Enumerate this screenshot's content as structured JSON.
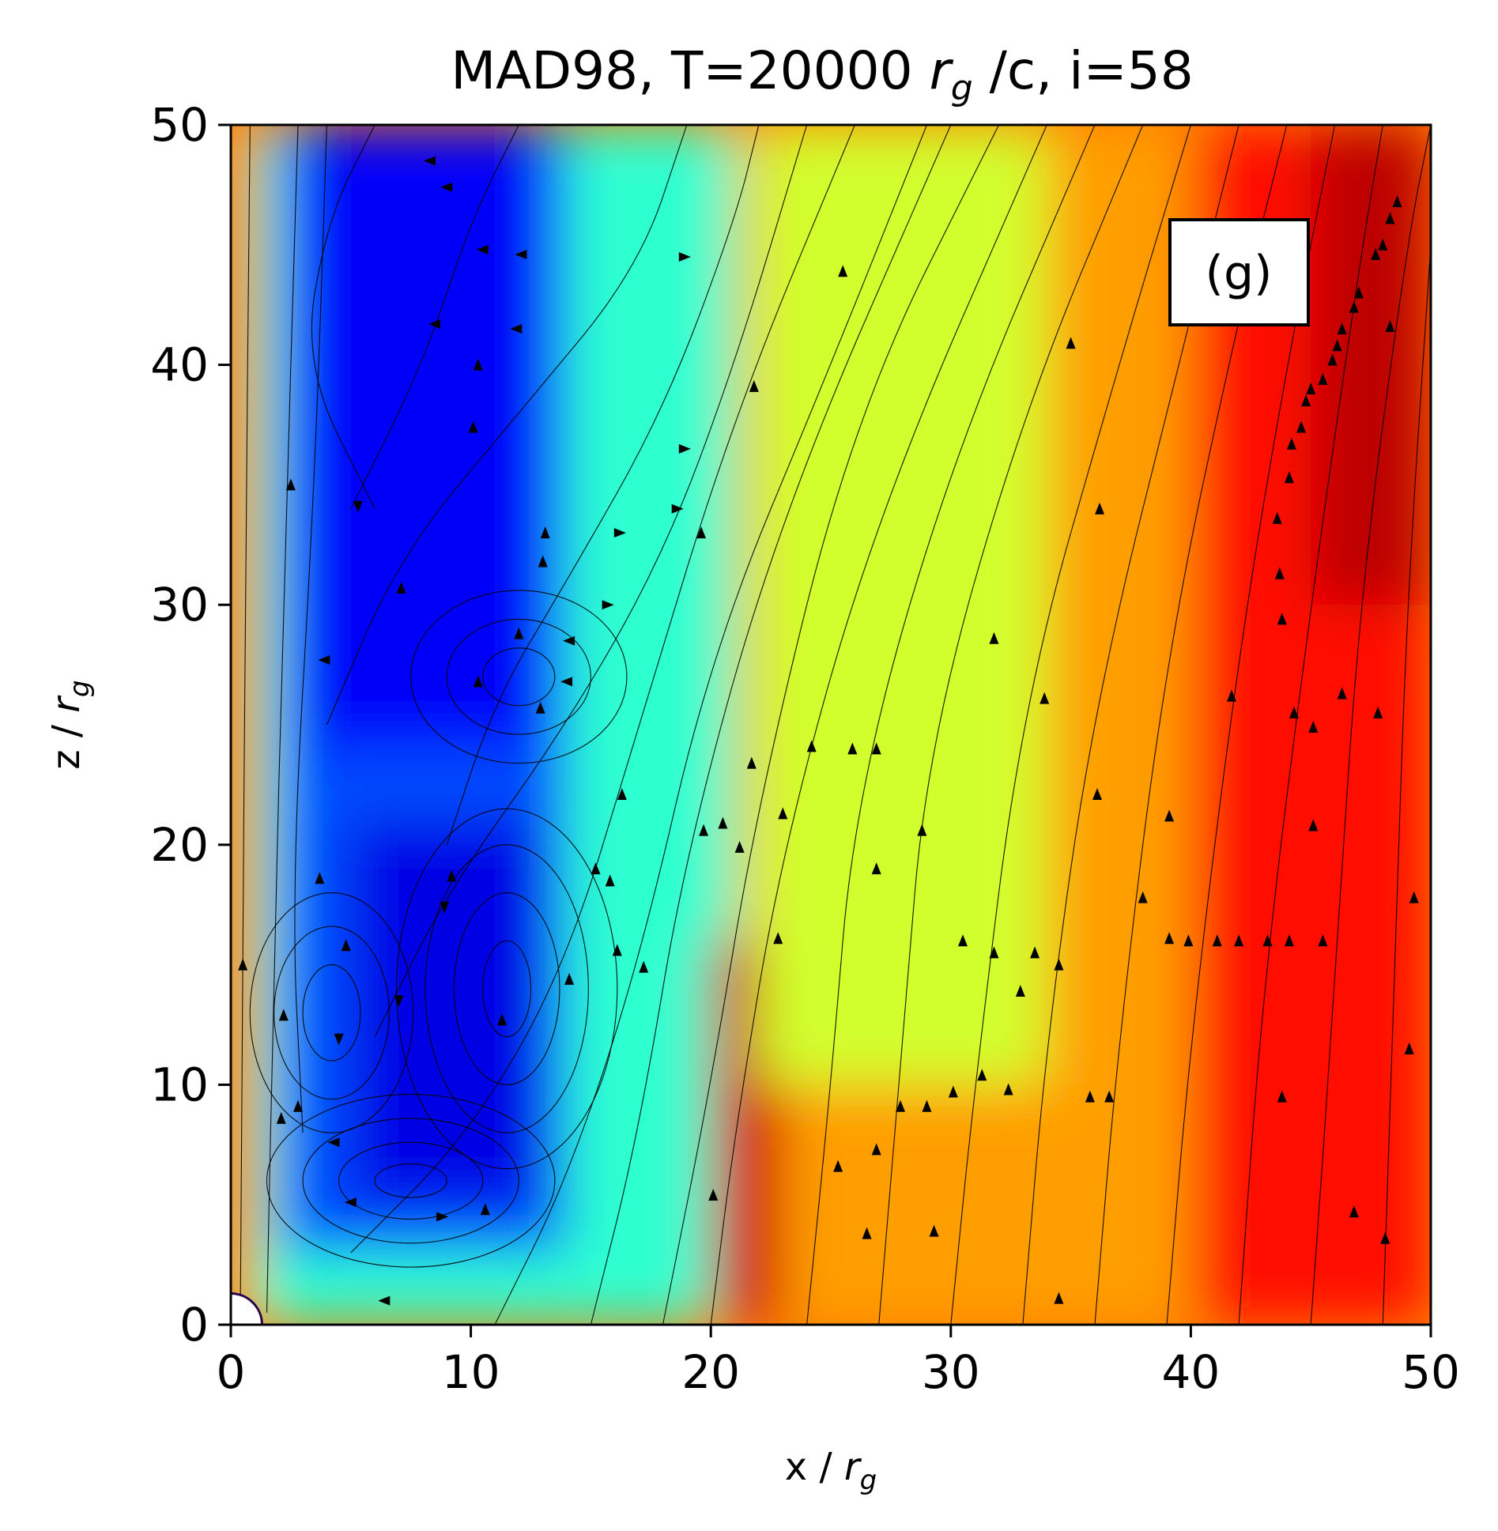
{
  "chart_data": {
    "type": "heatmap",
    "title_main": "MAD98, T=20000 ",
    "title_var": "r",
    "title_sub": "g",
    "title_tail": " /c, i=58",
    "xlabel_main": "x / ",
    "xlabel_var": "r",
    "xlabel_sub": "g",
    "ylabel_main": "z / ",
    "ylabel_var": "r",
    "ylabel_sub": "g",
    "xlim": [
      0,
      50
    ],
    "ylim": [
      0,
      50
    ],
    "xticks": [
      0,
      10,
      20,
      30,
      40,
      50
    ],
    "yticks": [
      0,
      10,
      20,
      30,
      40,
      50
    ],
    "xtick_labels": [
      "0",
      "10",
      "20",
      "30",
      "40",
      "50"
    ],
    "ytick_labels": [
      "0",
      "10",
      "20",
      "30",
      "40",
      "50"
    ],
    "panel_label": "(g)",
    "colormap": "jet",
    "colormap_stops": [
      "#00007f",
      "#0000ff",
      "#007fff",
      "#00ffff",
      "#7fff7f",
      "#ffff00",
      "#ff7f00",
      "#ff0000",
      "#7f0000"
    ],
    "field_regions": [
      {
        "x": [
          0,
          50
        ],
        "y": [
          0,
          50
        ],
        "level": 0.72
      },
      {
        "x": [
          1,
          21
        ],
        "y": [
          0,
          50
        ],
        "level": 0.42
      },
      {
        "x": [
          2,
          14
        ],
        "y": [
          3,
          50
        ],
        "level": 0.2
      },
      {
        "x": [
          3,
          13
        ],
        "y": [
          24,
          50
        ],
        "level": 0.12
      },
      {
        "x": [
          5,
          13
        ],
        "y": [
          5,
          21
        ],
        "level": 0.1
      },
      {
        "x": [
          20,
          23
        ],
        "y": [
          0,
          16
        ],
        "level": 0.92
      },
      {
        "x": [
          22,
          34
        ],
        "y": [
          10,
          50
        ],
        "level": 0.58
      },
      {
        "x": [
          40,
          50
        ],
        "y": [
          0,
          50
        ],
        "level": 0.86
      },
      {
        "x": [
          45,
          50
        ],
        "y": [
          30,
          50
        ],
        "level": 0.94
      }
    ],
    "streamlines": [
      {
        "points": [
          [
            0.4,
            1
          ],
          [
            0.5,
            15
          ],
          [
            0.6,
            30
          ],
          [
            0.8,
            50
          ]
        ]
      },
      {
        "points": [
          [
            1.5,
            0.5
          ],
          [
            1.8,
            15
          ],
          [
            2.2,
            30
          ],
          [
            2.8,
            50
          ]
        ]
      },
      {
        "points": [
          [
            3,
            8
          ],
          [
            2.5,
            18
          ],
          [
            3.5,
            35
          ],
          [
            4,
            50
          ]
        ]
      },
      {
        "points": [
          [
            6,
            34
          ],
          [
            3,
            40
          ],
          [
            4,
            46
          ],
          [
            6,
            50
          ]
        ]
      },
      {
        "points": [
          [
            5,
            34
          ],
          [
            8,
            40
          ],
          [
            10,
            46
          ],
          [
            12,
            50
          ]
        ]
      },
      {
        "points": [
          [
            4,
            25
          ],
          [
            7,
            32
          ],
          [
            12,
            38
          ],
          [
            17,
            44
          ],
          [
            19,
            50
          ]
        ]
      },
      {
        "points": [
          [
            9,
            20
          ],
          [
            11,
            26
          ],
          [
            14,
            31
          ],
          [
            18,
            38
          ],
          [
            21,
            46
          ],
          [
            22,
            50
          ]
        ]
      },
      {
        "points": [
          [
            6,
            12
          ],
          [
            9,
            18
          ],
          [
            14,
            25
          ],
          [
            18,
            32
          ],
          [
            21,
            40
          ],
          [
            24,
            50
          ]
        ]
      },
      {
        "points": [
          [
            5,
            3
          ],
          [
            10,
            8
          ],
          [
            14,
            15
          ],
          [
            17,
            25
          ],
          [
            21,
            38
          ],
          [
            26,
            50
          ]
        ]
      },
      {
        "points": [
          [
            11,
            0
          ],
          [
            14,
            6
          ],
          [
            17,
            15
          ],
          [
            20,
            28
          ],
          [
            25,
            40
          ],
          [
            29,
            50
          ]
        ]
      },
      {
        "points": [
          [
            15,
            0
          ],
          [
            17,
            8
          ],
          [
            19,
            20
          ],
          [
            23,
            34
          ],
          [
            30,
            50
          ]
        ]
      },
      {
        "points": [
          [
            18,
            0
          ],
          [
            20,
            10
          ],
          [
            22,
            22
          ],
          [
            26,
            38
          ],
          [
            32,
            50
          ]
        ]
      },
      {
        "points": [
          [
            20,
            0
          ],
          [
            21,
            8
          ],
          [
            23,
            20
          ],
          [
            27,
            34
          ],
          [
            34,
            50
          ]
        ]
      },
      {
        "points": [
          [
            24,
            0
          ],
          [
            25,
            10
          ],
          [
            26,
            22
          ],
          [
            30,
            36
          ],
          [
            36,
            50
          ]
        ]
      },
      {
        "points": [
          [
            27,
            0
          ],
          [
            28,
            12
          ],
          [
            29,
            24
          ],
          [
            33,
            38
          ],
          [
            38,
            50
          ]
        ]
      },
      {
        "points": [
          [
            30,
            0
          ],
          [
            31,
            10
          ],
          [
            33,
            26
          ],
          [
            37,
            40
          ],
          [
            40,
            50
          ]
        ]
      },
      {
        "points": [
          [
            33,
            0
          ],
          [
            34,
            12
          ],
          [
            36,
            26
          ],
          [
            40,
            42
          ],
          [
            42,
            50
          ]
        ]
      },
      {
        "points": [
          [
            36,
            0
          ],
          [
            37,
            12
          ],
          [
            39,
            28
          ],
          [
            42,
            42
          ],
          [
            44,
            50
          ]
        ]
      },
      {
        "points": [
          [
            39,
            0
          ],
          [
            40,
            12
          ],
          [
            42,
            28
          ],
          [
            44,
            40
          ],
          [
            46,
            50
          ]
        ]
      },
      {
        "points": [
          [
            42,
            0
          ],
          [
            43,
            14
          ],
          [
            45,
            30
          ],
          [
            47,
            44
          ],
          [
            48,
            50
          ]
        ]
      },
      {
        "points": [
          [
            45,
            0
          ],
          [
            46,
            14
          ],
          [
            47,
            30
          ],
          [
            49,
            45
          ],
          [
            50,
            50
          ]
        ]
      },
      {
        "points": [
          [
            48,
            0
          ],
          [
            48.5,
            15
          ],
          [
            49,
            30
          ],
          [
            50,
            45
          ]
        ]
      }
    ],
    "vortices": [
      {
        "cx": 7.5,
        "cy": 6,
        "rx": [
          1.5,
          3,
          4.5,
          6
        ],
        "ry": [
          0.7,
          1.6,
          2.6,
          3.6
        ]
      },
      {
        "cx": 4.2,
        "cy": 13,
        "rx": [
          1.2,
          2.4,
          3.4
        ],
        "ry": [
          2,
          3.6,
          5
        ]
      },
      {
        "cx": 11.5,
        "cy": 14,
        "rx": [
          1,
          2.2,
          3.4,
          4.6
        ],
        "ry": [
          2,
          4,
          6,
          7.5
        ]
      },
      {
        "cx": 12,
        "cy": 27,
        "rx": [
          1.5,
          3,
          4.5
        ],
        "ry": [
          1.2,
          2.4,
          3.6
        ]
      }
    ],
    "arrows": [
      {
        "x": 8.3,
        "y": 48.5,
        "dir": "left"
      },
      {
        "x": 9.0,
        "y": 47.4,
        "dir": "left"
      },
      {
        "x": 10.5,
        "y": 44.8,
        "dir": "left"
      },
      {
        "x": 12.1,
        "y": 44.6,
        "dir": "left"
      },
      {
        "x": 8.5,
        "y": 41.7,
        "dir": "left"
      },
      {
        "x": 11.9,
        "y": 41.5,
        "dir": "left"
      },
      {
        "x": 10.3,
        "y": 40.0,
        "dir": "up"
      },
      {
        "x": 10.1,
        "y": 37.4,
        "dir": "up"
      },
      {
        "x": 5.3,
        "y": 34.1,
        "dir": "down"
      },
      {
        "x": 7.1,
        "y": 30.7,
        "dir": "up"
      },
      {
        "x": 13.1,
        "y": 33.0,
        "dir": "up"
      },
      {
        "x": 13.0,
        "y": 31.8,
        "dir": "up"
      },
      {
        "x": 12.0,
        "y": 28.8,
        "dir": "up"
      },
      {
        "x": 14.1,
        "y": 28.5,
        "dir": "left"
      },
      {
        "x": 10.3,
        "y": 26.8,
        "dir": "up"
      },
      {
        "x": 14.0,
        "y": 26.8,
        "dir": "left"
      },
      {
        "x": 12.9,
        "y": 25.7,
        "dir": "up"
      },
      {
        "x": 3.9,
        "y": 27.7,
        "dir": "left"
      },
      {
        "x": 2.5,
        "y": 35.0,
        "dir": "up"
      },
      {
        "x": 3.7,
        "y": 18.6,
        "dir": "up"
      },
      {
        "x": 9.2,
        "y": 18.7,
        "dir": "up"
      },
      {
        "x": 8.9,
        "y": 17.4,
        "dir": "down"
      },
      {
        "x": 4.8,
        "y": 15.8,
        "dir": "up"
      },
      {
        "x": 7.0,
        "y": 13.5,
        "dir": "down"
      },
      {
        "x": 11.3,
        "y": 12.7,
        "dir": "up"
      },
      {
        "x": 4.5,
        "y": 11.9,
        "dir": "down"
      },
      {
        "x": 2.2,
        "y": 12.9,
        "dir": "up"
      },
      {
        "x": 2.8,
        "y": 9.1,
        "dir": "up"
      },
      {
        "x": 2.1,
        "y": 8.6,
        "dir": "up"
      },
      {
        "x": 4.3,
        "y": 7.6,
        "dir": "left"
      },
      {
        "x": 5.0,
        "y": 5.1,
        "dir": "left"
      },
      {
        "x": 8.8,
        "y": 4.5,
        "dir": "right"
      },
      {
        "x": 10.6,
        "y": 4.8,
        "dir": "up"
      },
      {
        "x": 6.4,
        "y": 1.0,
        "dir": "left"
      },
      {
        "x": 0.5,
        "y": 15.0,
        "dir": "up"
      },
      {
        "x": 14.1,
        "y": 14.4,
        "dir": "up"
      },
      {
        "x": 15.2,
        "y": 19.0,
        "dir": "up"
      },
      {
        "x": 15.8,
        "y": 18.5,
        "dir": "up"
      },
      {
        "x": 16.3,
        "y": 22.1,
        "dir": "up"
      },
      {
        "x": 16.1,
        "y": 15.6,
        "dir": "up"
      },
      {
        "x": 17.2,
        "y": 14.9,
        "dir": "up"
      },
      {
        "x": 16.2,
        "y": 33.0,
        "dir": "right"
      },
      {
        "x": 15.7,
        "y": 30.0,
        "dir": "right"
      },
      {
        "x": 18.6,
        "y": 34.0,
        "dir": "right"
      },
      {
        "x": 18.9,
        "y": 36.5,
        "dir": "right"
      },
      {
        "x": 18.9,
        "y": 44.5,
        "dir": "right"
      },
      {
        "x": 19.6,
        "y": 33.0,
        "dir": "up"
      },
      {
        "x": 19.7,
        "y": 20.6,
        "dir": "up"
      },
      {
        "x": 20.5,
        "y": 20.9,
        "dir": "up"
      },
      {
        "x": 21.2,
        "y": 19.9,
        "dir": "up"
      },
      {
        "x": 21.7,
        "y": 23.4,
        "dir": "up"
      },
      {
        "x": 21.8,
        "y": 39.1,
        "dir": "up"
      },
      {
        "x": 23.0,
        "y": 21.3,
        "dir": "up"
      },
      {
        "x": 22.8,
        "y": 16.1,
        "dir": "up"
      },
      {
        "x": 24.2,
        "y": 24.1,
        "dir": "up"
      },
      {
        "x": 25.9,
        "y": 24.0,
        "dir": "up"
      },
      {
        "x": 26.9,
        "y": 24.0,
        "dir": "up"
      },
      {
        "x": 26.9,
        "y": 19.0,
        "dir": "up"
      },
      {
        "x": 25.5,
        "y": 43.9,
        "dir": "up"
      },
      {
        "x": 28.8,
        "y": 20.6,
        "dir": "up"
      },
      {
        "x": 20.1,
        "y": 5.4,
        "dir": "up"
      },
      {
        "x": 25.3,
        "y": 6.6,
        "dir": "up"
      },
      {
        "x": 26.5,
        "y": 3.8,
        "dir": "up"
      },
      {
        "x": 26.9,
        "y": 7.3,
        "dir": "up"
      },
      {
        "x": 27.9,
        "y": 9.1,
        "dir": "up"
      },
      {
        "x": 29.0,
        "y": 9.1,
        "dir": "up"
      },
      {
        "x": 29.3,
        "y": 3.9,
        "dir": "up"
      },
      {
        "x": 30.1,
        "y": 9.7,
        "dir": "up"
      },
      {
        "x": 30.5,
        "y": 16.0,
        "dir": "up"
      },
      {
        "x": 31.3,
        "y": 10.4,
        "dir": "up"
      },
      {
        "x": 31.8,
        "y": 15.5,
        "dir": "up"
      },
      {
        "x": 31.8,
        "y": 28.6,
        "dir": "up"
      },
      {
        "x": 32.4,
        "y": 9.8,
        "dir": "up"
      },
      {
        "x": 32.9,
        "y": 13.9,
        "dir": "up"
      },
      {
        "x": 33.5,
        "y": 15.5,
        "dir": "up"
      },
      {
        "x": 33.9,
        "y": 26.1,
        "dir": "up"
      },
      {
        "x": 34.5,
        "y": 15.0,
        "dir": "up"
      },
      {
        "x": 34.5,
        "y": 1.1,
        "dir": "up"
      },
      {
        "x": 35.0,
        "y": 40.9,
        "dir": "up"
      },
      {
        "x": 35.8,
        "y": 9.5,
        "dir": "up"
      },
      {
        "x": 36.1,
        "y": 22.1,
        "dir": "up"
      },
      {
        "x": 36.2,
        "y": 34.0,
        "dir": "up"
      },
      {
        "x": 36.6,
        "y": 9.5,
        "dir": "up"
      },
      {
        "x": 38.0,
        "y": 17.8,
        "dir": "up"
      },
      {
        "x": 39.1,
        "y": 16.1,
        "dir": "up"
      },
      {
        "x": 39.1,
        "y": 21.2,
        "dir": "up"
      },
      {
        "x": 39.9,
        "y": 16.0,
        "dir": "up"
      },
      {
        "x": 41.1,
        "y": 16.0,
        "dir": "up"
      },
      {
        "x": 41.7,
        "y": 26.2,
        "dir": "up"
      },
      {
        "x": 42.0,
        "y": 16.0,
        "dir": "up"
      },
      {
        "x": 43.2,
        "y": 16.0,
        "dir": "up"
      },
      {
        "x": 43.6,
        "y": 33.6,
        "dir": "up"
      },
      {
        "x": 43.7,
        "y": 31.3,
        "dir": "up"
      },
      {
        "x": 43.8,
        "y": 29.4,
        "dir": "up"
      },
      {
        "x": 43.8,
        "y": 9.5,
        "dir": "up"
      },
      {
        "x": 44.1,
        "y": 35.3,
        "dir": "up"
      },
      {
        "x": 44.1,
        "y": 16.0,
        "dir": "up"
      },
      {
        "x": 44.2,
        "y": 36.7,
        "dir": "up"
      },
      {
        "x": 44.3,
        "y": 25.5,
        "dir": "up"
      },
      {
        "x": 44.6,
        "y": 37.4,
        "dir": "up"
      },
      {
        "x": 44.8,
        "y": 38.5,
        "dir": "up"
      },
      {
        "x": 45.0,
        "y": 39.0,
        "dir": "up"
      },
      {
        "x": 45.1,
        "y": 24.9,
        "dir": "up"
      },
      {
        "x": 45.1,
        "y": 20.8,
        "dir": "up"
      },
      {
        "x": 45.5,
        "y": 16.0,
        "dir": "up"
      },
      {
        "x": 45.5,
        "y": 39.4,
        "dir": "up"
      },
      {
        "x": 45.9,
        "y": 40.2,
        "dir": "up"
      },
      {
        "x": 46.1,
        "y": 40.8,
        "dir": "up"
      },
      {
        "x": 46.3,
        "y": 26.3,
        "dir": "up"
      },
      {
        "x": 46.3,
        "y": 41.5,
        "dir": "up"
      },
      {
        "x": 46.8,
        "y": 42.4,
        "dir": "up"
      },
      {
        "x": 46.8,
        "y": 4.7,
        "dir": "up"
      },
      {
        "x": 47.0,
        "y": 43.0,
        "dir": "up"
      },
      {
        "x": 47.7,
        "y": 44.6,
        "dir": "up"
      },
      {
        "x": 47.8,
        "y": 25.5,
        "dir": "up"
      },
      {
        "x": 48.0,
        "y": 45.0,
        "dir": "up"
      },
      {
        "x": 48.1,
        "y": 3.6,
        "dir": "up"
      },
      {
        "x": 48.3,
        "y": 41.6,
        "dir": "up"
      },
      {
        "x": 48.3,
        "y": 46.1,
        "dir": "up"
      },
      {
        "x": 48.6,
        "y": 46.8,
        "dir": "up"
      },
      {
        "x": 49.1,
        "y": 11.5,
        "dir": "up"
      },
      {
        "x": 49.3,
        "y": 17.8,
        "dir": "up"
      }
    ]
  }
}
